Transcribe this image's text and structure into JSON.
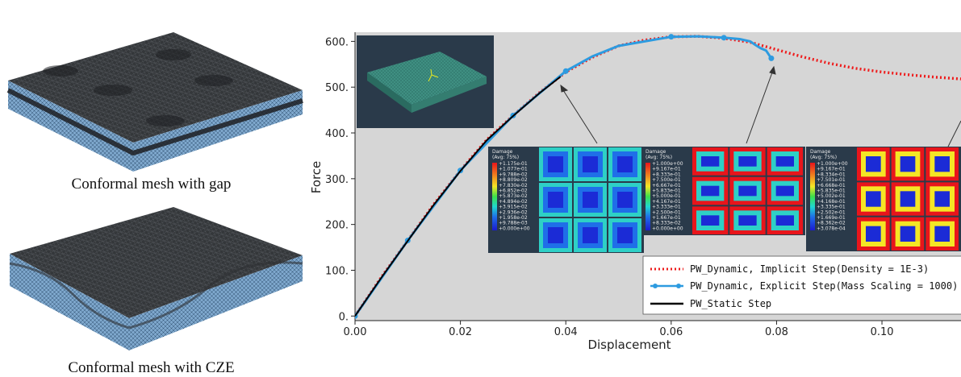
{
  "captions": {
    "top": "Conformal mesh with gap",
    "bottom": "Conformal mesh with CZE"
  },
  "colors": {
    "plot_bg": "#d6d6d6",
    "implicit": "#ee1c1c",
    "explicit": "#2d9be0",
    "static": "#000000",
    "mesh_dark": "#2e3033",
    "mesh_blue": "#6f9cc6",
    "inset_green": "#3f8f82"
  },
  "insets": {
    "contours": [
      {
        "header": [
          "Damage",
          "(Avg: 75%)"
        ],
        "values": [
          "+1.175e-01",
          "+1.077e-01",
          "+9.788e-02",
          "+8.809e-02",
          "+7.830e-02",
          "+6.852e-02",
          "+5.873e-02",
          "+4.894e-02",
          "+3.915e-02",
          "+2.936e-02",
          "+1.958e-02",
          "+9.788e-03",
          "+0.000e+00"
        ]
      },
      {
        "header": [
          "Damage",
          "(Avg: 75%)"
        ],
        "values": [
          "+1.000e+00",
          "+9.167e-01",
          "+8.333e-01",
          "+7.500e-01",
          "+6.667e-01",
          "+5.833e-01",
          "+5.000e-01",
          "+4.167e-01",
          "+3.333e-01",
          "+2.500e-01",
          "+1.667e-01",
          "+8.333e-02",
          "+0.000e+00"
        ]
      },
      {
        "header": [
          "Damage",
          "(Avg: 75%)"
        ],
        "values": [
          "+1.000e+00",
          "+9.167e-01",
          "+8.334e-01",
          "+7.501e-01",
          "+6.668e-01",
          "+5.835e-01",
          "+5.002e-01",
          "+4.168e-01",
          "+3.335e-01",
          "+2.502e-01",
          "+1.669e-01",
          "+8.362e-02",
          "+3.078e-04"
        ]
      }
    ]
  },
  "chart_data": {
    "type": "line",
    "xlabel": "Displacement",
    "ylabel": "Force",
    "xlim": [
      0,
      0.115
    ],
    "ylim": [
      -10,
      620
    ],
    "xticks": [
      0,
      0.02,
      0.04,
      0.06,
      0.08,
      0.1
    ],
    "xtick_labels": [
      "0.00",
      "0.02",
      "0.04",
      "0.06",
      "0.08",
      "0.10"
    ],
    "yticks": [
      0,
      100,
      200,
      300,
      400,
      500,
      600
    ],
    "ytick_labels": [
      "0.",
      "100.",
      "200.",
      "300.",
      "400.",
      "500.",
      "600."
    ],
    "grid": false,
    "legend_position": "bottom-right",
    "series": [
      {
        "name": "PW_Dynamic, Implicit Step(Density = 1E-3)",
        "style": "dotted",
        "x": [
          0,
          0.005,
          0.01,
          0.015,
          0.02,
          0.025,
          0.03,
          0.035,
          0.04,
          0.045,
          0.05,
          0.055,
          0.06,
          0.065,
          0.07,
          0.075,
          0.08,
          0.085,
          0.09,
          0.095,
          0.1,
          0.105,
          0.11,
          0.115
        ],
        "y": [
          0,
          85,
          165,
          245,
          318,
          385,
          438,
          488,
          533,
          565,
          590,
          603,
          610,
          611,
          607,
          598,
          582,
          566,
          552,
          541,
          533,
          527,
          522,
          518
        ]
      },
      {
        "name": "PW_Dynamic, Explicit Step(Mass Scaling = 1000)",
        "style": "solid-markers",
        "x": [
          0,
          0.01,
          0.02,
          0.03,
          0.04,
          0.045,
          0.05,
          0.06,
          0.065,
          0.07,
          0.073,
          0.075,
          0.076,
          0.077,
          0.078,
          0.079
        ],
        "y": [
          0,
          165,
          318,
          438,
          535,
          567,
          590,
          610,
          611,
          608,
          605,
          600,
          592,
          585,
          580,
          563
        ],
        "marker_x": [
          0,
          0.01,
          0.02,
          0.03,
          0.04,
          0.06,
          0.07,
          0.079
        ]
      },
      {
        "name": "PW_Static Step",
        "style": "solid",
        "x": [
          0,
          0.005,
          0.01,
          0.015,
          0.02,
          0.025,
          0.03,
          0.035,
          0.039
        ],
        "y": [
          0,
          84,
          164,
          244,
          317,
          384,
          437,
          487,
          523
        ]
      }
    ]
  }
}
